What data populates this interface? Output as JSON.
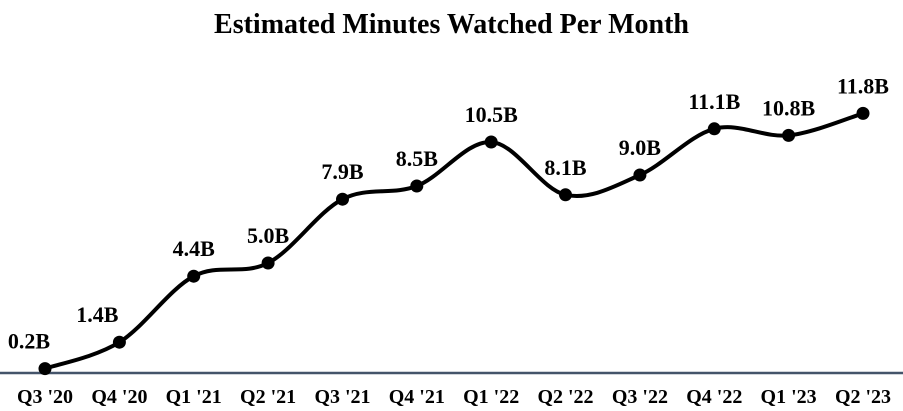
{
  "chart_data": {
    "type": "line",
    "title": "Estimated Minutes Watched Per Month",
    "categories": [
      "Q3 '20",
      "Q4 '20",
      "Q1 '21",
      "Q2 '21",
      "Q3 '21",
      "Q4 '21",
      "Q1 '22",
      "Q2 '22",
      "Q3 '22",
      "Q4 '22",
      "Q1 '23",
      "Q2 '23"
    ],
    "values": [
      0.2,
      1.4,
      4.4,
      5.0,
      7.9,
      8.5,
      10.5,
      8.1,
      9.0,
      11.1,
      10.8,
      11.8
    ],
    "point_labels": [
      "0.2B",
      "1.4B",
      "4.4B",
      "5.0B",
      "7.9B",
      "8.5B",
      "10.5B",
      "8.1B",
      "9.0B",
      "11.1B",
      "10.8B",
      "11.8B"
    ],
    "unit": "B",
    "xlabel": "",
    "ylabel": "",
    "ylim": [
      0,
      12
    ],
    "grid": false,
    "legend": "none",
    "y_axis_visible": false,
    "smoothed": true,
    "marker": "circle",
    "colors": {
      "line": "#000000",
      "marker": "#000000",
      "label_text": "#000000",
      "axis_line": "#44546A",
      "background": "#FFFFFF"
    }
  }
}
